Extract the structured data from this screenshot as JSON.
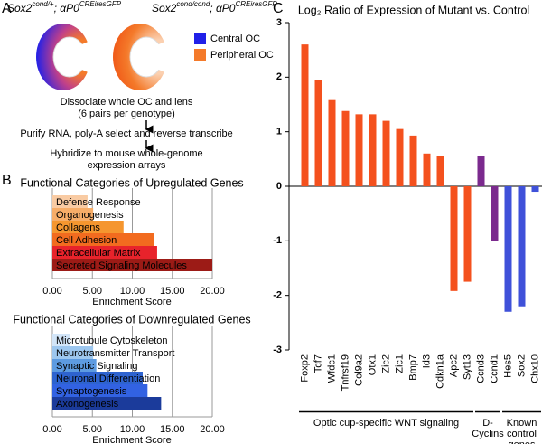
{
  "panels": {
    "a": "A",
    "b": "B",
    "c": "C"
  },
  "panel_a": {
    "genotypes": [
      [
        "Sox2",
        "cond/+",
        "; αP0",
        "CREiresGFP"
      ],
      [
        "Sox2",
        "cond/cond",
        "; αP0",
        "CREiresGFP"
      ]
    ],
    "legend": [
      {
        "name": "Central OC",
        "color": "#2020e8"
      },
      {
        "name": "Peripheral OC",
        "color": "#f47a2a"
      }
    ],
    "steps": [
      [
        "Dissociate whole OC and lens",
        "(6 pairs per genotype)"
      ],
      [
        "Purify RNA, poly-A select and reverse transcribe"
      ],
      [
        "Hybridize to mouse whole-genome",
        "expression arrays"
      ]
    ]
  },
  "chart_data": [
    {
      "type": "hbar",
      "title": "Functional Categories of Upregulated Genes",
      "categories": [
        "Defense Response",
        "Organogenesis",
        "Collagens",
        "Cell Adhesion",
        "Extracellular Matrix",
        "Secreted Signaling Molecules"
      ],
      "values": [
        4.4,
        5.1,
        8.9,
        12.7,
        13.1,
        20.0
      ],
      "colors": [
        "#f9cba3",
        "#f7ad68",
        "#f5962f",
        "#f26b1f",
        "#e8232b",
        "#9c1b16"
      ],
      "xlim": [
        0,
        20
      ],
      "xticks": [
        {
          "value": 0,
          "label": "0.00"
        },
        {
          "value": 5,
          "label": "5.00"
        },
        {
          "value": 10,
          "label": "10.00"
        },
        {
          "value": 15,
          "label": "15.00"
        },
        {
          "value": 20,
          "label": "20.00"
        }
      ],
      "xlabel": "Enrichment Score",
      "grid": true
    },
    {
      "type": "hbar",
      "title": "Functional Categories of Downregulated Genes",
      "categories": [
        "Microtubule Cytoskeleton",
        "Neurotransmitter Transport",
        "Synaptic Signaling",
        "Neuronal Differentiation",
        "Synaptogenesis",
        "Axonogenesis"
      ],
      "values": [
        2.2,
        5.1,
        5.5,
        11.3,
        11.9,
        13.6
      ],
      "colors": [
        "#d2e5f8",
        "#9dc7ef",
        "#5d9be1",
        "#2e63cf",
        "#3262e2",
        "#1b3b9b"
      ],
      "xlim": [
        0,
        20
      ],
      "xticks": [
        {
          "value": 0,
          "label": "0.00"
        },
        {
          "value": 5,
          "label": "5.00"
        },
        {
          "value": 10,
          "label": "10.00"
        },
        {
          "value": 15,
          "label": "15.00"
        },
        {
          "value": 20,
          "label": "20.00"
        }
      ],
      "xlabel": "Enrichment Score",
      "grid": true
    },
    {
      "type": "bar",
      "title": "Log₂ Ratio of Expression of Mutant vs. Control",
      "categories": [
        "Foxp2",
        "Tcf7",
        "Wfdc1",
        "Tnfrsf19",
        "Col9a2",
        "Otx1",
        "Zic2",
        "Zic1",
        "Bmp7",
        "Id3",
        "Cdkn1a",
        "Apc2",
        "Syt13",
        "Ccnd3",
        "Ccnd1",
        "Hes5",
        "Sox2",
        "Chx10"
      ],
      "values": [
        2.6,
        1.95,
        1.58,
        1.38,
        1.32,
        1.32,
        1.2,
        1.05,
        0.93,
        0.6,
        0.55,
        -1.92,
        -1.75,
        0.55,
        -1.0,
        -2.3,
        -2.2,
        -0.1
      ],
      "colors": [
        "#f4511e",
        "#f4511e",
        "#f4511e",
        "#f4511e",
        "#f4511e",
        "#f4511e",
        "#f4511e",
        "#f4511e",
        "#f4511e",
        "#f4511e",
        "#f4511e",
        "#f4511e",
        "#f4511e",
        "#7b2a8e",
        "#7b2a8e",
        "#3f51d9",
        "#3f51d9",
        "#3f51d9"
      ],
      "ylim": [
        -3,
        3
      ],
      "yticks": [
        -3,
        -2,
        -1,
        0,
        1,
        2,
        3
      ],
      "groups": [
        [
          "Optic    cup-specific WNT signaling"
        ],
        [
          "D-",
          "Cyclins"
        ],
        [
          "Known",
          "control",
          "genes"
        ]
      ]
    }
  ]
}
